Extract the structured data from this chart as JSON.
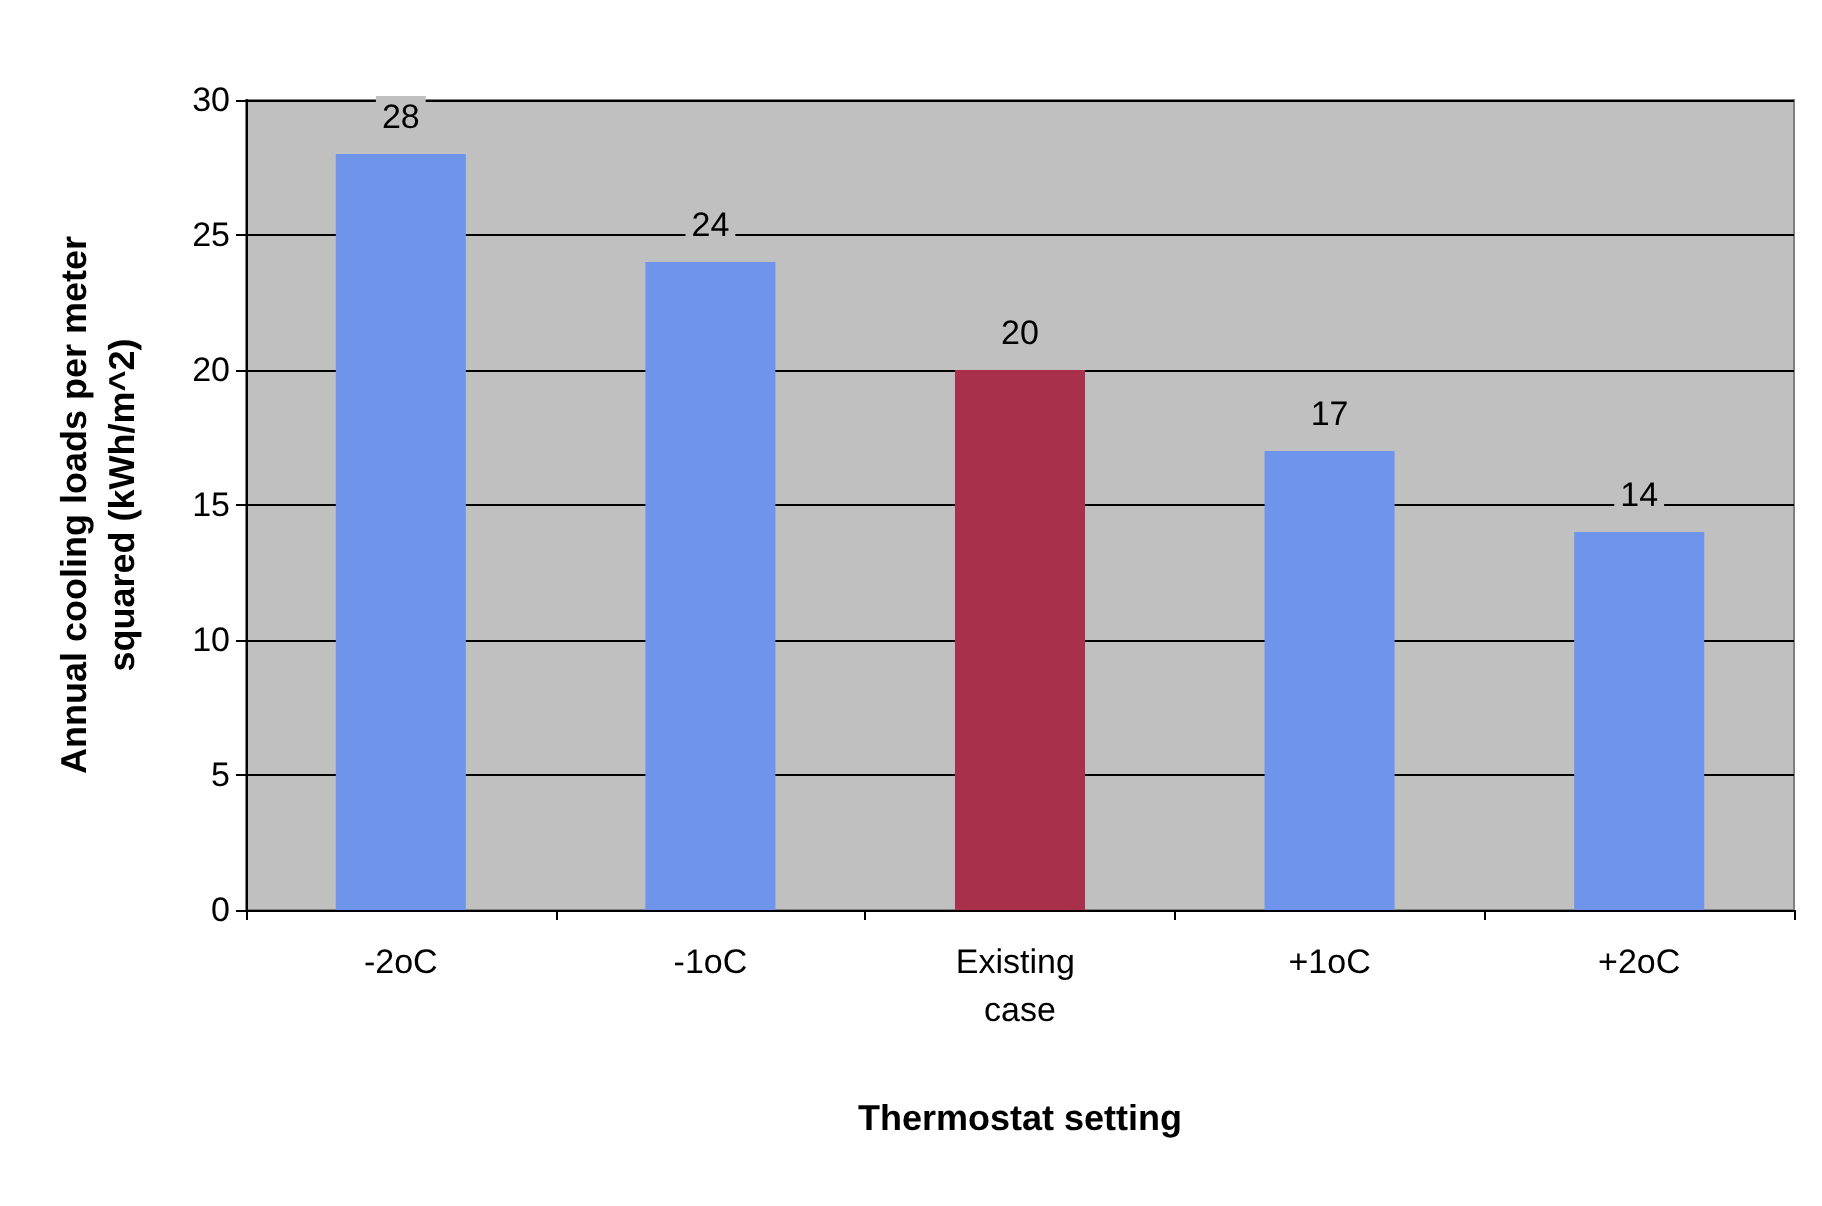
{
  "chart_data": {
    "type": "bar",
    "xlabel": "Thermostat setting",
    "ylabel": "Annual cooling loads per meter squared (kWh/m^2)",
    "categories": [
      "-2oC",
      "-1oC",
      "Existing case",
      "+1oC",
      "+2oC"
    ],
    "values": [
      28,
      24,
      20,
      17,
      14
    ],
    "colors": [
      "#6f94ec",
      "#6f94ec",
      "#a8304a",
      "#6f94ec",
      "#6f94ec"
    ],
    "ylim": [
      0,
      30
    ],
    "yticks": [
      0,
      5,
      10,
      15,
      20,
      25,
      30
    ],
    "grid": "y",
    "data_labels": true
  }
}
